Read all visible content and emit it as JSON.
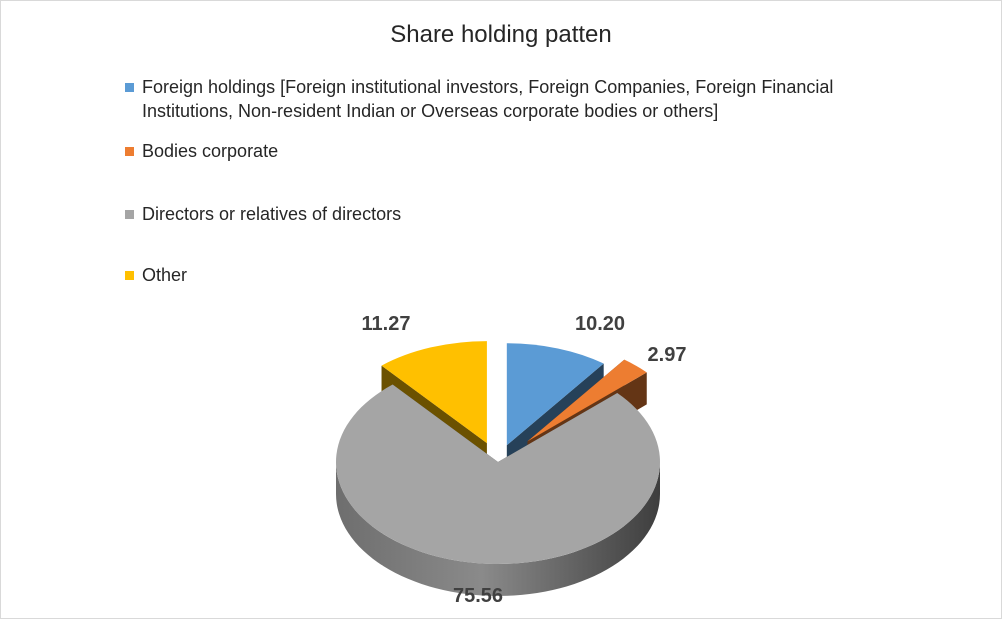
{
  "chart_data": {
    "type": "pie",
    "title": "Share holding patten",
    "legend_position": "top-left",
    "slices": [
      {
        "name": "Foreign holdings [Foreign institutional  investors, Foreign Companies, Foreign Financial Institutions, Non-resident Indian or Overseas corporate bodies or others]",
        "value": 10.2,
        "label": "10.20",
        "color": "#5b9bd5"
      },
      {
        "name": "Bodies corporate",
        "value": 2.97,
        "label": "2.97",
        "color": "#ed7d31"
      },
      {
        "name": "Directors or relatives of directors",
        "value": 75.56,
        "label": "75.56",
        "color": "#a5a5a5"
      },
      {
        "name": "Other",
        "value": 11.27,
        "label": "11.27",
        "color": "#ffc000"
      }
    ]
  }
}
